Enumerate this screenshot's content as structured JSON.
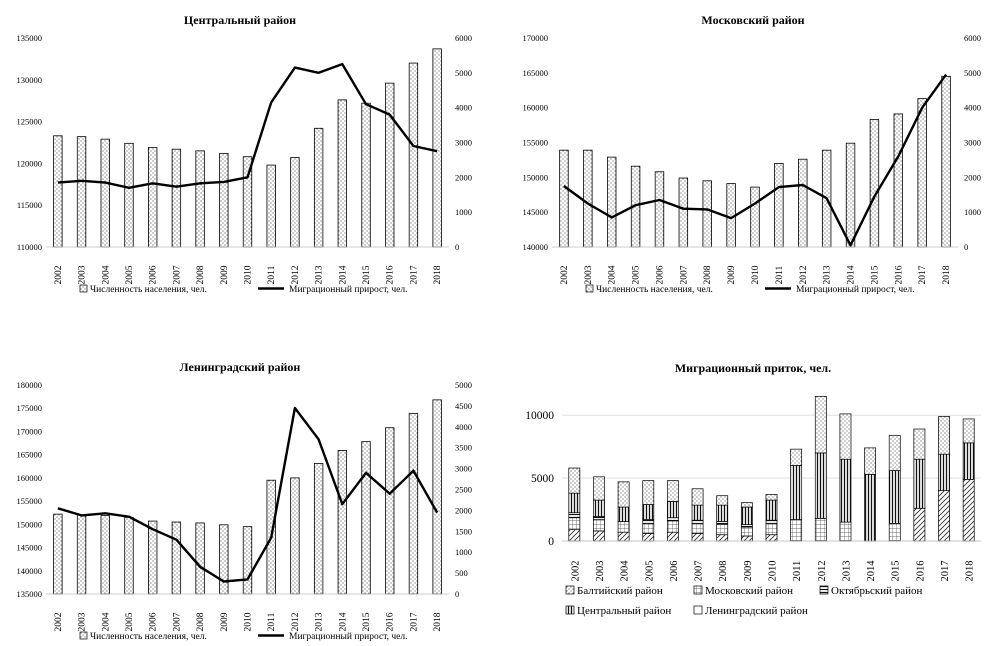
{
  "chart_data": [
    {
      "type": "bar+line",
      "title": "Центральный район",
      "categories": [
        "2002",
        "2003",
        "2004",
        "2005",
        "2006",
        "2007",
        "2008",
        "2009",
        "2010",
        "2011",
        "2012",
        "2013",
        "2014",
        "2015",
        "2016",
        "2017",
        "2018"
      ],
      "series": [
        {
          "name": "Численность населения, чел.",
          "kind": "bar",
          "axis": "left",
          "values": [
            123300,
            123200,
            122900,
            122400,
            121900,
            121700,
            121500,
            121200,
            120800,
            119800,
            120700,
            124200,
            127600,
            127200,
            129600,
            132000,
            133700
          ]
        },
        {
          "name": "Миграционный прирост, чел.",
          "kind": "line",
          "axis": "right",
          "values": [
            1850,
            1900,
            1850,
            1700,
            1830,
            1730,
            1830,
            1870,
            2000,
            4150,
            5150,
            5000,
            5250,
            4100,
            3800,
            2900,
            2750
          ]
        }
      ],
      "ylim_left": [
        110000,
        135000
      ],
      "yticks_left": [
        "110000",
        "115000",
        "120000",
        "125000",
        "130000",
        "135000"
      ],
      "ylim_right": [
        0,
        6000
      ],
      "yticks_right": [
        "0",
        "1000",
        "2000",
        "3000",
        "4000",
        "5000",
        "6000"
      ],
      "legend": [
        "Численность населения, чел.",
        "Миграционный прирост, чел."
      ]
    },
    {
      "type": "bar+line",
      "title": "Московский район",
      "categories": [
        "2002",
        "2003",
        "2004",
        "2005",
        "2006",
        "2007",
        "2008",
        "2009",
        "2010",
        "2011",
        "2012",
        "2013",
        "2014",
        "2015",
        "2016",
        "2017",
        "2018"
      ],
      "series": [
        {
          "name": "Численность населения, чел.",
          "kind": "bar",
          "axis": "left",
          "values": [
            153900,
            153900,
            152900,
            151600,
            150800,
            149900,
            149500,
            149100,
            148600,
            152000,
            152600,
            153900,
            154900,
            158300,
            159100,
            161300,
            164500
          ]
        },
        {
          "name": "Миграционный прирост, чел.",
          "kind": "line",
          "axis": "right",
          "values": [
            1750,
            1250,
            850,
            1200,
            1350,
            1100,
            1080,
            830,
            1250,
            1720,
            1780,
            1400,
            50,
            1450,
            2600,
            4000,
            4950
          ]
        }
      ],
      "ylim_left": [
        140000,
        170000
      ],
      "yticks_left": [
        "140000",
        "145000",
        "150000",
        "155000",
        "160000",
        "165000",
        "170000"
      ],
      "ylim_right": [
        0,
        6000
      ],
      "yticks_right": [
        "0",
        "1000",
        "2000",
        "3000",
        "4000",
        "5000",
        "6000"
      ],
      "legend": [
        "Численность населения, чел.",
        "Миграционный прирост, чел."
      ]
    },
    {
      "type": "bar+line",
      "title": "Ленинградский район",
      "categories": [
        "2002",
        "2003",
        "2004",
        "2005",
        "2006",
        "2007",
        "2008",
        "2009",
        "2010",
        "2011",
        "2012",
        "2013",
        "2014",
        "2015",
        "2016",
        "2017",
        "2018"
      ],
      "series": [
        {
          "name": "Численность населения, чел.",
          "kind": "bar",
          "axis": "left",
          "values": [
            152200,
            152000,
            151900,
            151500,
            150700,
            150500,
            150300,
            149900,
            149500,
            159500,
            160000,
            163100,
            165900,
            167800,
            170800,
            173900,
            176800
          ]
        },
        {
          "name": "Миграционный прирост, чел.",
          "kind": "line",
          "axis": "right",
          "values": [
            2050,
            1880,
            1930,
            1850,
            1550,
            1300,
            650,
            300,
            350,
            1350,
            4450,
            3700,
            2150,
            2900,
            2400,
            2950,
            1950
          ]
        }
      ],
      "ylim_left": [
        135000,
        180000
      ],
      "yticks_left": [
        "135000",
        "140000",
        "145000",
        "150000",
        "155000",
        "160000",
        "165000",
        "170000",
        "175000",
        "180000"
      ],
      "ylim_right": [
        0,
        5000
      ],
      "yticks_right": [
        "0",
        "500",
        "1000",
        "1500",
        "2000",
        "2500",
        "3000",
        "3500",
        "4000",
        "4500",
        "5000"
      ],
      "legend": [
        "Численность населения, чел.",
        "Миграционный прирост, чел."
      ]
    },
    {
      "type": "stacked-bar",
      "title": "Миграционный приток, чел.",
      "categories": [
        "2002",
        "2003",
        "2004",
        "2005",
        "2006",
        "2007",
        "2008",
        "2009",
        "2010",
        "2011",
        "2012",
        "2013",
        "2014",
        "2015",
        "2016",
        "2017",
        "2018"
      ],
      "ylim": [
        0,
        12000
      ],
      "yticks": [
        "0",
        "5000",
        "10000"
      ],
      "series": [
        {
          "name": "Ленинградский район",
          "pattern": "slash",
          "values": [
            900,
            800,
            700,
            600,
            700,
            600,
            500,
            400,
            500,
            0,
            0,
            0,
            0,
            0,
            2600,
            4000,
            4900
          ]
        },
        {
          "name": "Московский район",
          "pattern": "grid",
          "values": [
            950,
            900,
            850,
            800,
            900,
            800,
            800,
            700,
            900,
            1700,
            1800,
            1500,
            0,
            1400,
            0,
            0,
            0
          ]
        },
        {
          "name": "Октябрьский район",
          "pattern": "hlines",
          "values": [
            400,
            250,
            0,
            300,
            250,
            250,
            250,
            200,
            250,
            0,
            0,
            0,
            0,
            0,
            0,
            0,
            0
          ]
        },
        {
          "name": "Центральный район",
          "pattern": "vlines",
          "values": [
            1550,
            1300,
            1150,
            1200,
            1300,
            1200,
            1300,
            1400,
            1600,
            4300,
            5200,
            5000,
            5300,
            4200,
            3900,
            2900,
            2900
          ]
        },
        {
          "name": "Балтийский район",
          "pattern": "dots",
          "values": [
            2000,
            1850,
            2000,
            1900,
            1650,
            1300,
            750,
            350,
            450,
            1300,
            4500,
            3600,
            2100,
            2800,
            2400,
            3000,
            1900
          ]
        }
      ],
      "legend": [
        "Балтийский район",
        "Московский район",
        "Октябрьский район",
        "Центральный район",
        "Ленинградский район"
      ]
    }
  ]
}
